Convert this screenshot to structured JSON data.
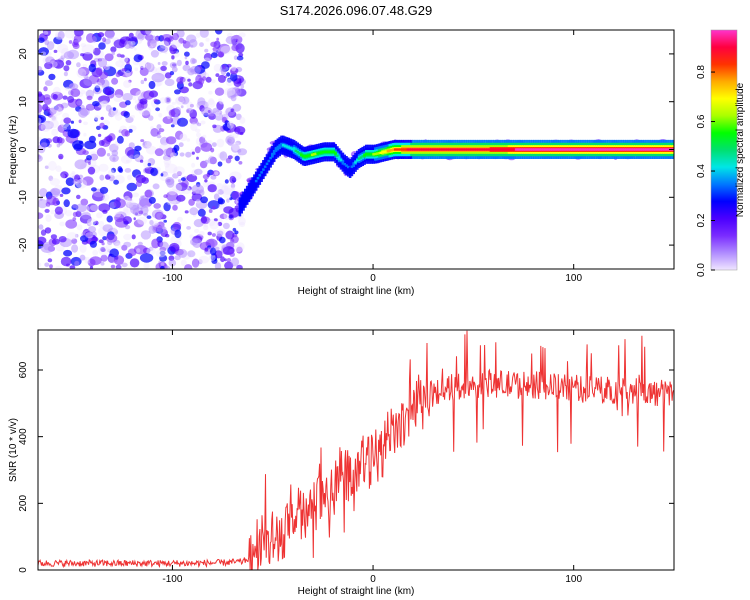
{
  "title": "S174.2026.096.07.48.G29",
  "chart_data": [
    {
      "type": "heatmap",
      "title": "S174.2026.096.07.48.G29",
      "xlabel": "Height of straight line (km)",
      "ylabel": "Frequency (Hz)",
      "xlim": [
        -167,
        150
      ],
      "ylim": [
        -25,
        25
      ],
      "xticks": [
        -100,
        0,
        100
      ],
      "yticks": [
        -20,
        -10,
        0,
        10,
        20
      ],
      "noise_region": {
        "x_from": -167,
        "x_to": -65,
        "y_from": -25,
        "y_to": 25,
        "amplitude_range": [
          0.0,
          0.3
        ]
      },
      "frequency_trace": {
        "x": [
          -67,
          -64,
          -61,
          -58,
          -55,
          -52,
          -49,
          -46,
          -43,
          -40,
          -35,
          -30,
          -25,
          -20,
          -15,
          -12,
          -8,
          -4,
          0,
          5,
          10,
          20,
          30,
          40,
          50,
          60,
          80,
          100,
          120,
          150
        ],
        "y": [
          -12,
          -10,
          -8,
          -6,
          -4,
          -2,
          0,
          1,
          0.5,
          0,
          -1.5,
          -1,
          -0.5,
          -0.5,
          -3,
          -4,
          -2,
          -1,
          -1,
          -0.5,
          0,
          0,
          0,
          0,
          0,
          0,
          0,
          0,
          0,
          0
        ],
        "amplitude": [
          0.25,
          0.28,
          0.3,
          0.32,
          0.35,
          0.35,
          0.38,
          0.38,
          0.4,
          0.45,
          0.55,
          0.6,
          0.55,
          0.55,
          0.35,
          0.3,
          0.45,
          0.55,
          0.6,
          0.7,
          0.8,
          0.9,
          0.9,
          0.9,
          0.9,
          0.92,
          0.95,
          0.95,
          0.95,
          0.95
        ]
      },
      "colorbar": {
        "label": "Normalized spectral amplitude",
        "ticks": [
          0.0,
          0.2,
          0.4,
          0.6,
          0.8
        ],
        "range": [
          0.0,
          0.97
        ],
        "colors": [
          "#f0e6ff",
          "#b08cff",
          "#7a2cff",
          "#4b00ff",
          "#0000ff",
          "#0077ff",
          "#00e6e6",
          "#00e070",
          "#00ff00",
          "#aaff00",
          "#ffff00",
          "#ffaa00",
          "#ff3300",
          "#ff0040",
          "#ff33cc"
        ]
      }
    },
    {
      "type": "line",
      "xlabel": "Height of straight line (km)",
      "ylabel": "SNR (10 * v/v)",
      "xlim": [
        -167,
        150
      ],
      "ylim": [
        0,
        720
      ],
      "xticks": [
        -100,
        0,
        100
      ],
      "yticks": [
        0,
        200,
        400,
        600
      ],
      "line_color": "#ee3333",
      "series": [
        {
          "name": "SNR",
          "x": [
            -167,
            -150,
            -130,
            -110,
            -90,
            -75,
            -65,
            -60,
            -55,
            -50,
            -45,
            -40,
            -35,
            -30,
            -25,
            -20,
            -15,
            -10,
            -5,
            0,
            5,
            10,
            15,
            20,
            25,
            30,
            35,
            40,
            50,
            60,
            70,
            80,
            90,
            100,
            110,
            120,
            130,
            140,
            150
          ],
          "y": [
            20,
            20,
            20,
            20,
            20,
            22,
            25,
            40,
            70,
            90,
            110,
            140,
            170,
            200,
            230,
            250,
            270,
            290,
            320,
            330,
            370,
            400,
            440,
            480,
            510,
            530,
            540,
            550,
            555,
            560,
            555,
            555,
            550,
            545,
            540,
            540,
            535,
            530,
            530
          ]
        }
      ]
    }
  ]
}
